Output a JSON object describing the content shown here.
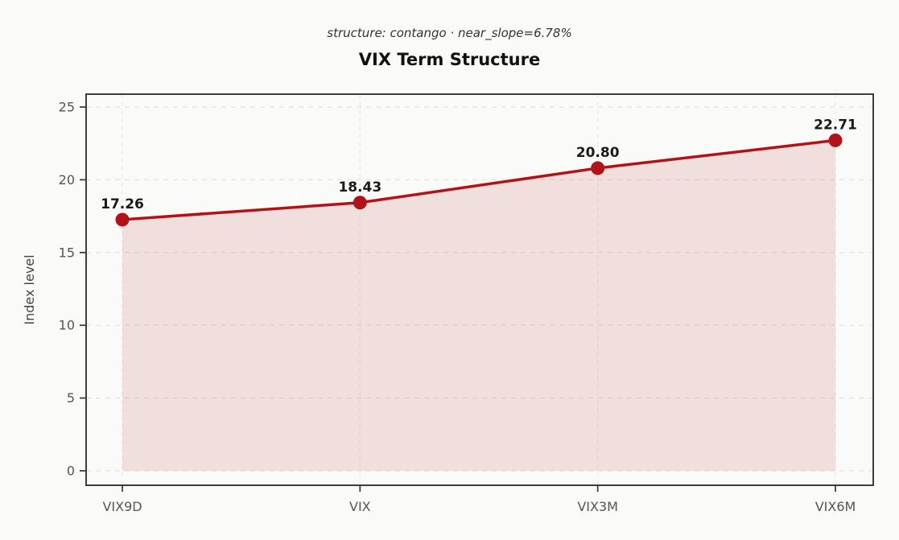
{
  "chart_data": {
    "type": "area",
    "title": "VIX Term Structure",
    "subtitle": "structure: contango · near_slope=6.78%",
    "xlabel": "",
    "ylabel": "Index level",
    "categories": [
      "VIX9D",
      "VIX",
      "VIX3M",
      "VIX6M"
    ],
    "values": [
      17.26,
      18.43,
      20.8,
      22.71
    ],
    "value_labels": [
      "17.26",
      "18.43",
      "20.80",
      "22.71"
    ],
    "ylim": [
      0,
      25
    ],
    "yticks": [
      0,
      5,
      10,
      15,
      20,
      25
    ],
    "ytick_labels": [
      "0",
      "5",
      "10",
      "15",
      "20",
      "25"
    ],
    "grid": true,
    "legend": "none",
    "colors": {
      "line": "#b11318",
      "marker": "#b11318",
      "fill": "#b22222",
      "fill_opacity": 0.12,
      "background": "#fafaf8",
      "grid_h": "#e2e2e2",
      "grid_v": "#e9e9e9",
      "spine": "#3d3d3d",
      "tick_label": "#555555",
      "axis_label": "#444444",
      "value_label": "#1a1a1a",
      "title": "#111111",
      "subtitle": "#333333"
    }
  }
}
